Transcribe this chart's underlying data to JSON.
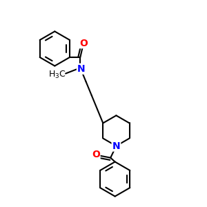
{
  "bg_color": "#ffffff",
  "atom_color_N": "#0000ff",
  "atom_color_O": "#ff0000",
  "atom_color_C": "#000000",
  "bond_color": "#000000",
  "bond_lw": 1.5,
  "font_size_atom": 10,
  "font_size_label": 9,
  "xlim": [
    0,
    10
  ],
  "ylim": [
    0,
    10
  ]
}
